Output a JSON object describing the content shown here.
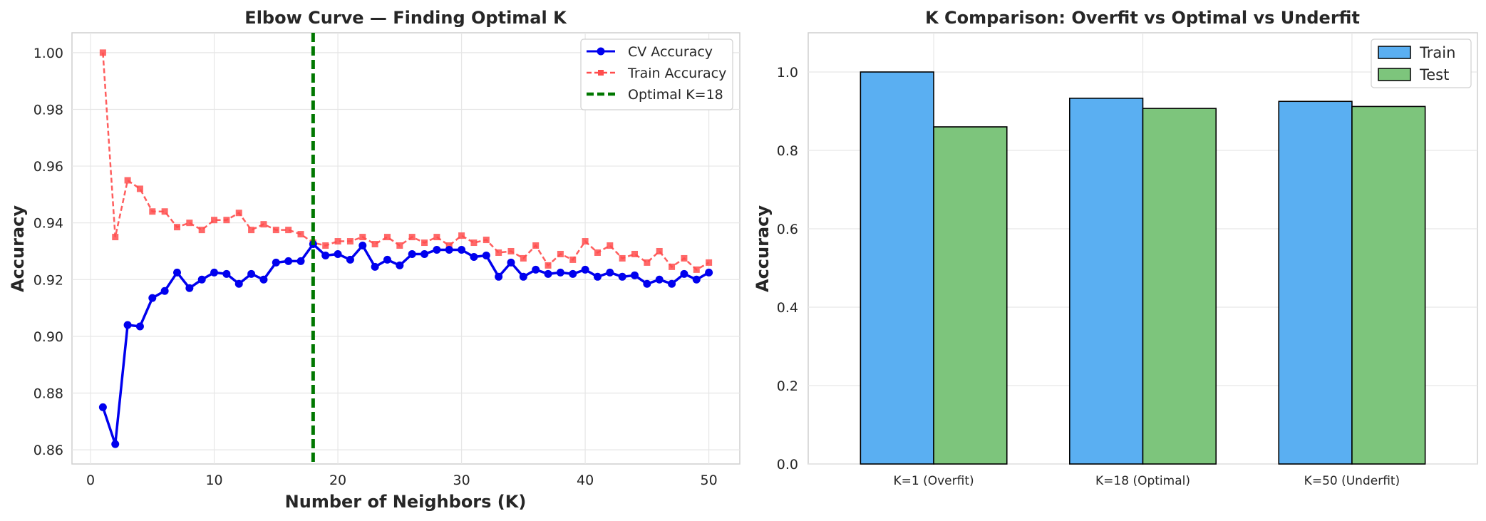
{
  "chart_data": [
    {
      "type": "line",
      "title": "Elbow Curve — Finding Optimal K",
      "xlabel": "Number of Neighbors (K)",
      "ylabel": "Accuracy",
      "xlim": [
        -1.5,
        52.5
      ],
      "ylim": [
        0.855,
        1.007
      ],
      "xticks": [
        0,
        10,
        20,
        30,
        40,
        50
      ],
      "xtick_labels": [
        "0",
        "10",
        "20",
        "30",
        "40",
        "50"
      ],
      "yticks": [
        0.86,
        0.88,
        0.9,
        0.92,
        0.94,
        0.96,
        0.98,
        1.0
      ],
      "ytick_labels": [
        "0.86",
        "0.88",
        "0.90",
        "0.92",
        "0.94",
        "0.96",
        "0.98",
        "1.00"
      ],
      "grid": true,
      "legend_position": "top-right",
      "x": [
        1,
        2,
        3,
        4,
        5,
        6,
        7,
        8,
        9,
        10,
        11,
        12,
        13,
        14,
        15,
        16,
        17,
        18,
        19,
        20,
        21,
        22,
        23,
        24,
        25,
        26,
        27,
        28,
        29,
        30,
        31,
        32,
        33,
        34,
        35,
        36,
        37,
        38,
        39,
        40,
        41,
        42,
        43,
        44,
        45,
        46,
        47,
        48,
        49,
        50
      ],
      "series": [
        {
          "name": "CV Accuracy",
          "color": "#0000ee",
          "style": "solid",
          "marker": "circle",
          "values": [
            0.875,
            0.862,
            0.904,
            0.9035,
            0.9135,
            0.916,
            0.9225,
            0.917,
            0.92,
            0.9225,
            0.922,
            0.9185,
            0.922,
            0.92,
            0.926,
            0.9265,
            0.9265,
            0.9325,
            0.9285,
            0.929,
            0.927,
            0.932,
            0.9245,
            0.927,
            0.925,
            0.929,
            0.929,
            0.9305,
            0.9305,
            0.9305,
            0.928,
            0.9285,
            0.921,
            0.926,
            0.921,
            0.9235,
            0.922,
            0.9225,
            0.922,
            0.9235,
            0.921,
            0.9225,
            0.921,
            0.9215,
            0.9185,
            0.92,
            0.9185,
            0.922,
            0.92,
            0.9225
          ]
        },
        {
          "name": "Train Accuracy",
          "color": "#ff4d4d",
          "style": "dashed",
          "marker": "square",
          "values": [
            1.0,
            0.935,
            0.955,
            0.952,
            0.944,
            0.944,
            0.9385,
            0.94,
            0.9375,
            0.941,
            0.941,
            0.9435,
            0.9375,
            0.9395,
            0.9375,
            0.9375,
            0.936,
            0.933,
            0.932,
            0.9335,
            0.9335,
            0.935,
            0.9325,
            0.935,
            0.932,
            0.935,
            0.933,
            0.935,
            0.932,
            0.9355,
            0.933,
            0.934,
            0.9295,
            0.93,
            0.9275,
            0.932,
            0.925,
            0.929,
            0.927,
            0.9335,
            0.9295,
            0.932,
            0.9275,
            0.929,
            0.926,
            0.93,
            0.9245,
            0.9275,
            0.9235,
            0.926
          ]
        }
      ],
      "annotations": [
        {
          "type": "vline",
          "x": 18,
          "label": "Optimal K=18",
          "color": "#007700",
          "style": "dashed"
        }
      ],
      "legend": [
        "CV Accuracy",
        "Train Accuracy",
        "Optimal K=18"
      ]
    },
    {
      "type": "bar",
      "title": "K Comparison: Overfit vs Optimal vs Underfit",
      "xlabel": "",
      "ylabel": "Accuracy",
      "ylim": [
        0,
        1.1
      ],
      "yticks": [
        0.0,
        0.2,
        0.4,
        0.6,
        0.8,
        1.0
      ],
      "ytick_labels": [
        "0.0",
        "0.2",
        "0.4",
        "0.6",
        "0.8",
        "1.0"
      ],
      "grid": true,
      "legend_position": "top-right",
      "categories": [
        "K=1  (Overfit)",
        "K=18  (Optimal)",
        "K=50 (Underfit)"
      ],
      "series": [
        {
          "name": "Train",
          "color": "#5aaff2",
          "values": [
            1.0,
            0.933,
            0.925
          ]
        },
        {
          "name": "Test",
          "color": "#7dc57c",
          "values": [
            0.86,
            0.907,
            0.912
          ]
        }
      ],
      "legend": [
        "Train",
        "Test"
      ]
    }
  ]
}
